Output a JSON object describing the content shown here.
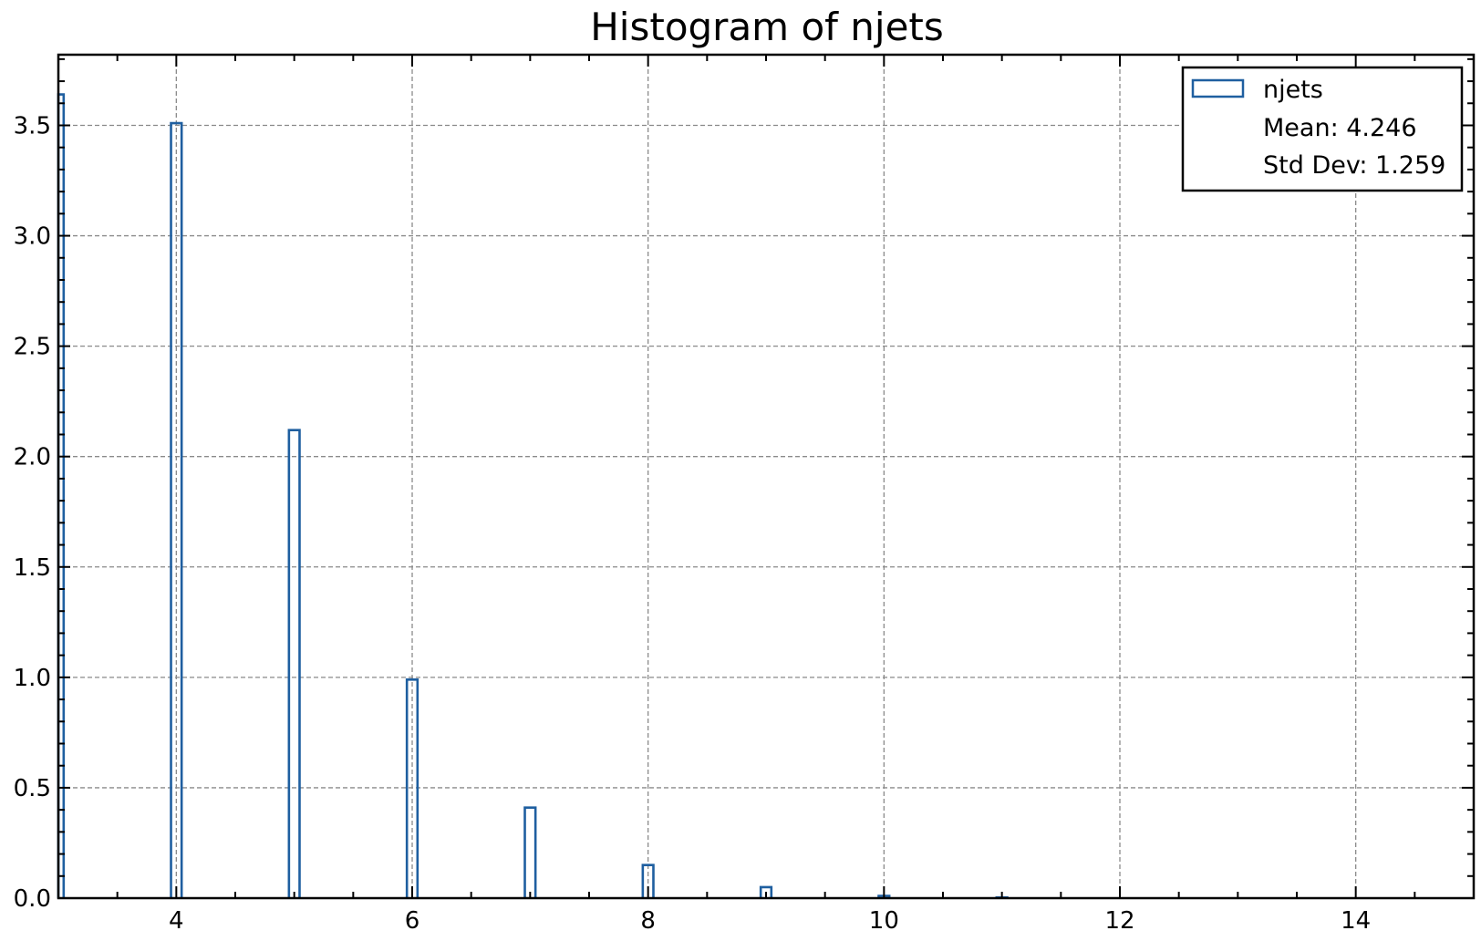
{
  "chart_data": {
    "type": "bar",
    "title": "Histogram of njets",
    "xlabel": "",
    "ylabel": "",
    "xlim": [
      3,
      15
    ],
    "ylim": [
      0,
      3.82
    ],
    "x_ticks": [
      4,
      6,
      8,
      10,
      12,
      14
    ],
    "x_tick_labels": [
      "4",
      "6",
      "8",
      "10",
      "12",
      "14"
    ],
    "y_ticks": [
      0,
      0.5,
      1.0,
      1.5,
      2.0,
      2.5,
      3.0,
      3.5
    ],
    "y_tick_labels": [
      "0.0",
      "0.5",
      "1.0",
      "1.5",
      "2.0",
      "2.5",
      "3.0",
      "3.5"
    ],
    "grid": true,
    "legend_position": "top-right",
    "series": [
      {
        "name": "njets",
        "color": "#1f5fa0",
        "style": "step-outline",
        "bin_width": 0.09,
        "x": [
          3,
          4,
          5,
          6,
          7,
          8,
          9,
          10,
          11
        ],
        "values": [
          3.64,
          3.51,
          2.12,
          0.99,
          0.41,
          0.15,
          0.05,
          0.01,
          0.003
        ]
      }
    ],
    "stats": {
      "mean_label": "Mean: 4.246",
      "std_label": "Std Dev: 1.259"
    }
  }
}
